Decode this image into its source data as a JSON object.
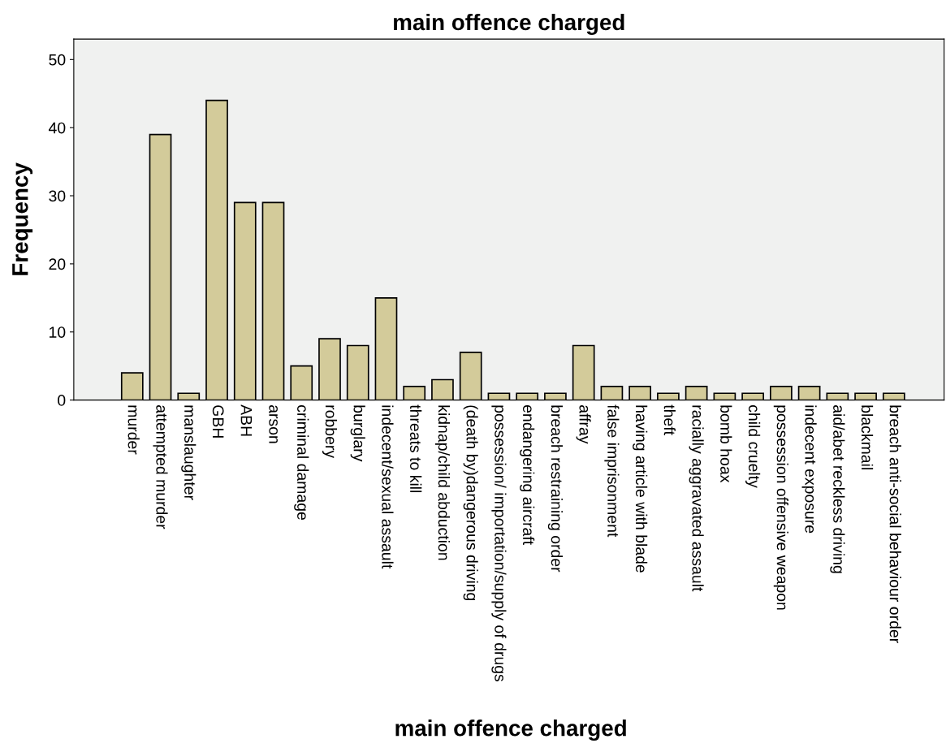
{
  "chart_data": {
    "type": "bar",
    "title": "main offence charged",
    "xlabel": "main offence charged",
    "ylabel": "Frequency",
    "categories": [
      "murder",
      "attempted murder",
      "manslaughter",
      "GBH",
      "ABH",
      "arson",
      "criminal damage",
      "robbery",
      "burglary",
      "indecent/sexual assault",
      "threats to kill",
      "kidnap/child abduction",
      "(death by)dangerous driving",
      "possession/ importation/supply of drugs",
      "endangering aircraft",
      "breach restraining order",
      "affray",
      "false imprisonment",
      "having article with blade",
      "theft",
      "racially aggravated assault",
      "bomb hoax",
      "child cruelty",
      "possession offensive weapon",
      "indecent exposure",
      "aid/abet reckless driving",
      "blackmail",
      "breach anti-social behaviour order"
    ],
    "values": [
      4,
      39,
      1,
      44,
      29,
      29,
      5,
      9,
      8,
      15,
      2,
      3,
      7,
      1,
      1,
      1,
      8,
      2,
      2,
      1,
      2,
      1,
      1,
      2,
      2,
      1,
      1,
      1
    ],
    "color": "#d3cb9a",
    "ylim": [
      0,
      53
    ],
    "yticks": [
      0,
      10,
      20,
      30,
      40,
      50
    ],
    "grid": false
  }
}
